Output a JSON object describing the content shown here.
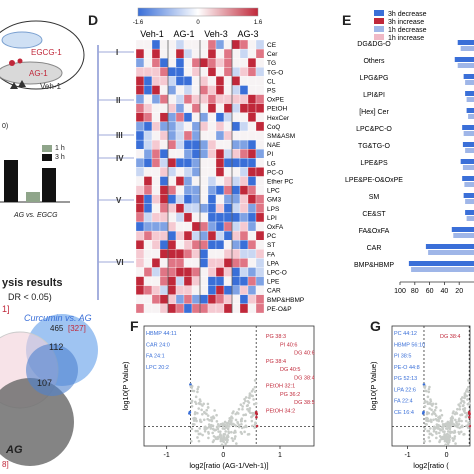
{
  "panel_letters": {
    "d": "D",
    "e": "E",
    "f": "F",
    "g": "G"
  },
  "pca": {
    "groups": [
      "EGCG-1",
      "AG-1",
      "Veh-1"
    ],
    "axis_fragment": "0)"
  },
  "bar_mini": {
    "legend": [
      "1 h",
      "3 h"
    ],
    "xlabel": "AG vs. EGCG",
    "legend_colors": [
      "#8fa58a",
      "#111111"
    ]
  },
  "venn": {
    "title": "ysis results",
    "subtitle": "DR < 0.05)",
    "fragment": "1]",
    "set_label": "Curcumin vs. AG",
    "set_count": "465",
    "set_count_red": "[327]",
    "center_big": "112",
    "center_mid": "107",
    "bottom_label": "AG",
    "bottom_fragment": "8]"
  },
  "heatmap": {
    "columns": [
      "Veh-1",
      "AG-1",
      "Veh-3",
      "AG-3"
    ],
    "clusters": [
      "I",
      "II",
      "III",
      "IV",
      "V",
      "VI"
    ],
    "scale_ticks": [
      "-1.6",
      "0",
      "1.6"
    ],
    "rows": [
      "CE",
      "Cer",
      "TG",
      "TG-O",
      "CL",
      "PS",
      "OxPE",
      "PEtOH",
      "HexCer",
      "CoQ",
      "SM&ASM",
      "NAE",
      "PI",
      "LG",
      "PC-O",
      "Ether PC",
      "LPC",
      "GM3",
      "LPS",
      "LPI",
      "OxFA",
      "PC",
      "ST",
      "FA",
      "LPA",
      "LPC-O",
      "LPE",
      "CAR",
      "BMP&HBMP",
      "PE-O&P"
    ]
  },
  "chart_data": [
    {
      "type": "bar",
      "title": "",
      "legend": [
        "3h decrease",
        "3h increase",
        "1h decrease",
        "1h increase"
      ],
      "legend_colors": [
        "#3a6fd8",
        "#c0283a",
        "#9fb6e8",
        "#f0b9c6"
      ],
      "categories": [
        "DG&DG-O",
        "Others",
        "LPG&PG",
        "LPI&PI",
        "[Hex] Cer",
        "LPC&PC-O",
        "TG&TG-O",
        "LPE&PS",
        "LPE&PE-O&OxPE",
        "SM",
        "CE&ST",
        "FA&OxFA",
        "CAR",
        "BMP&HBMP"
      ],
      "xticks": [
        "100",
        "80",
        "60",
        "40",
        "20"
      ],
      "xlim": [
        100,
        0
      ],
      "series": [
        {
          "name": "3h decrease",
          "values": [
            22,
            26,
            14,
            12,
            10,
            16,
            15,
            18,
            16,
            14,
            12,
            30,
            65,
            88
          ]
        },
        {
          "name": "1h decrease",
          "values": [
            18,
            22,
            12,
            10,
            8,
            14,
            12,
            15,
            13,
            12,
            10,
            28,
            62,
            85
          ]
        }
      ]
    },
    {
      "type": "scatter",
      "panel": "F",
      "xlabel": "log2[ratio (AG-1/Veh-1)]",
      "ylabel": "log10(P Value)",
      "xticks": [
        "-1",
        "0",
        "1"
      ],
      "xlim": [
        -1.4,
        1.6
      ],
      "ylim": [
        0,
        8
      ],
      "labels_up": [
        "PG 38:3",
        "PI 40:6",
        "DG 40:6",
        "PG 38:4",
        "DG 40:5",
        "DG 38:4",
        "PEtOH 32:1",
        "PG 36:2",
        "DG 38:5",
        "PEtOH 34:2"
      ],
      "labels_down": [
        "HBMP 44:11",
        "CAR 24:0",
        "FA 24:1",
        "LPC 20:2"
      ]
    },
    {
      "type": "scatter",
      "panel": "G",
      "xlabel": "log2[ratio (",
      "ylabel": "log10(P Value)",
      "xticks": [
        "-1",
        "0"
      ],
      "xlim": [
        -1.4,
        0.6
      ],
      "ylim": [
        0,
        8
      ],
      "labels_up": [
        "DG 38:4"
      ],
      "labels_down": [
        "PC 44:12",
        "HBMP 56:10",
        "PI 38:5",
        "PE-O 44:8",
        "PG 52:13",
        "LPA 22:6",
        "FA 22:4",
        "CE 16:4"
      ]
    }
  ]
}
